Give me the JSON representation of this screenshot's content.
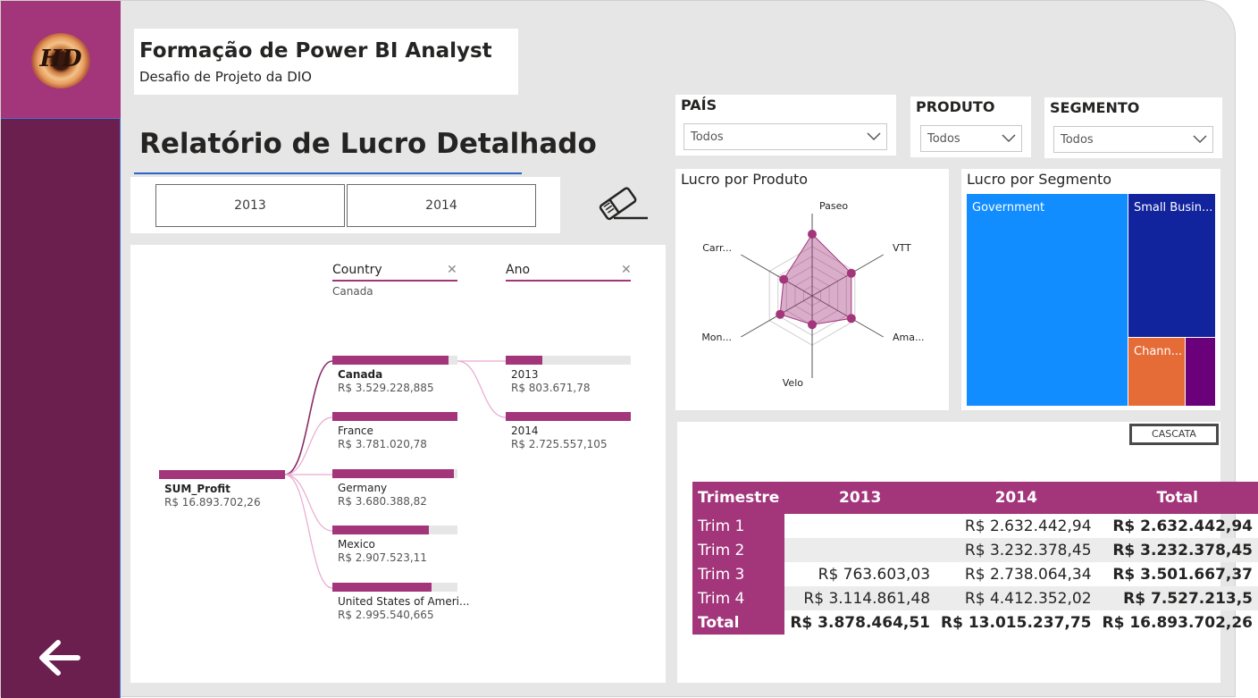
{
  "header": {
    "title": "Formação de Power BI Analyst",
    "subtitle": "Desafio de Projeto da DIO",
    "report_title": "Relatório de Lucro Detalhado"
  },
  "logo": {
    "text": "HD"
  },
  "year_buttons": [
    "2013",
    "2014"
  ],
  "slicers": {
    "pais": {
      "label": "PAÍS",
      "value": "Todos"
    },
    "produto": {
      "label": "PRODUTO",
      "value": "Todos"
    },
    "segmento": {
      "label": "SEGMENTO",
      "value": "Todos"
    }
  },
  "decomposition": {
    "root": {
      "label": "SUM_Profit",
      "value": "R$ 16.893.702,26"
    },
    "level1": {
      "header": "Country",
      "filter": "Canada"
    },
    "level2": {
      "header": "Ano"
    },
    "countries": [
      {
        "label": "Canada",
        "value": "R$ 3.529.228,885",
        "share": 0.93,
        "selected": true
      },
      {
        "label": "France",
        "value": "R$ 3.781.020,78",
        "share": 1.0
      },
      {
        "label": "Germany",
        "value": "R$ 3.680.388,82",
        "share": 0.97
      },
      {
        "label": "Mexico",
        "value": "R$ 2.907.523,11",
        "share": 0.77
      },
      {
        "label": "United States of Ameri...",
        "value": "R$ 2.995.540,665",
        "share": 0.79
      }
    ],
    "years": [
      {
        "label": "2013",
        "value": "R$ 803.671,78",
        "share": 0.29
      },
      {
        "label": "2014",
        "value": "R$ 2.725.557,105",
        "share": 1.0
      }
    ]
  },
  "radar": {
    "title": "Lucro por Produto",
    "axes": [
      "Paseo",
      "VTT",
      "Ama...",
      "Velo",
      "Mon...",
      "Carr..."
    ],
    "values": [
      0.75,
      0.55,
      0.55,
      0.35,
      0.45,
      0.4
    ],
    "color": "#a3357b"
  },
  "treemap": {
    "title": "Lucro por Segmento",
    "items": [
      {
        "label": "Government",
        "color": "#118dff"
      },
      {
        "label": "Small Busin...",
        "color": "#12239e"
      },
      {
        "label": "Chann...",
        "color": "#e66c37"
      },
      {
        "label": "",
        "color": "#6b007b"
      }
    ]
  },
  "matrix": {
    "button": "CASCATA",
    "headers": [
      "Trimestre",
      "2013",
      "2014",
      "Total"
    ],
    "rows": [
      [
        "Trim 1",
        "",
        "R$ 2.632.442,94",
        "R$ 2.632.442,94"
      ],
      [
        "Trim 2",
        "",
        "R$ 3.232.378,45",
        "R$ 3.232.378,45"
      ],
      [
        "Trim 3",
        "R$ 763.603,03",
        "R$ 2.738.064,34",
        "R$ 3.501.667,37"
      ],
      [
        "Trim 4",
        "R$ 3.114.861,48",
        "R$ 4.412.352,02",
        "R$ 7.527.213,5"
      ]
    ],
    "total": [
      "Total",
      "R$ 3.878.464,51",
      "R$ 13.015.237,75",
      "R$ 16.893.702,26"
    ]
  },
  "icons": {
    "back": "arrow-left-icon",
    "clear": "eraser-icon",
    "close": "close-icon",
    "dropdown": "chevron-down-icon"
  }
}
